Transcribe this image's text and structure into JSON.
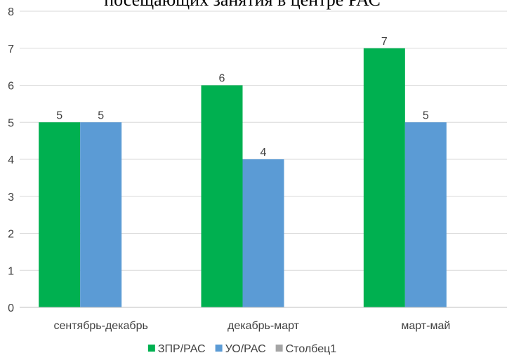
{
  "chart_data": {
    "type": "bar",
    "title": "посещающих занятия в центре РАС",
    "categories": [
      "сентябрь-декабрь",
      "декабрь-март",
      "март-май"
    ],
    "series": [
      {
        "name": "ЗПР/РАС",
        "values": [
          5,
          6,
          7
        ],
        "color": "#00b050"
      },
      {
        "name": "УО/РАС",
        "values": [
          5,
          4,
          5
        ],
        "color": "#5b9bd5"
      },
      {
        "name": "Столбец1",
        "values": [
          null,
          null,
          null
        ],
        "color": "#a5a5a5"
      }
    ],
    "ylim": [
      0,
      8
    ],
    "yticks": [
      0,
      1,
      2,
      3,
      4,
      5,
      6,
      7,
      8
    ],
    "grid": true,
    "legend_position": "bottom",
    "xlabel": "",
    "ylabel": ""
  }
}
